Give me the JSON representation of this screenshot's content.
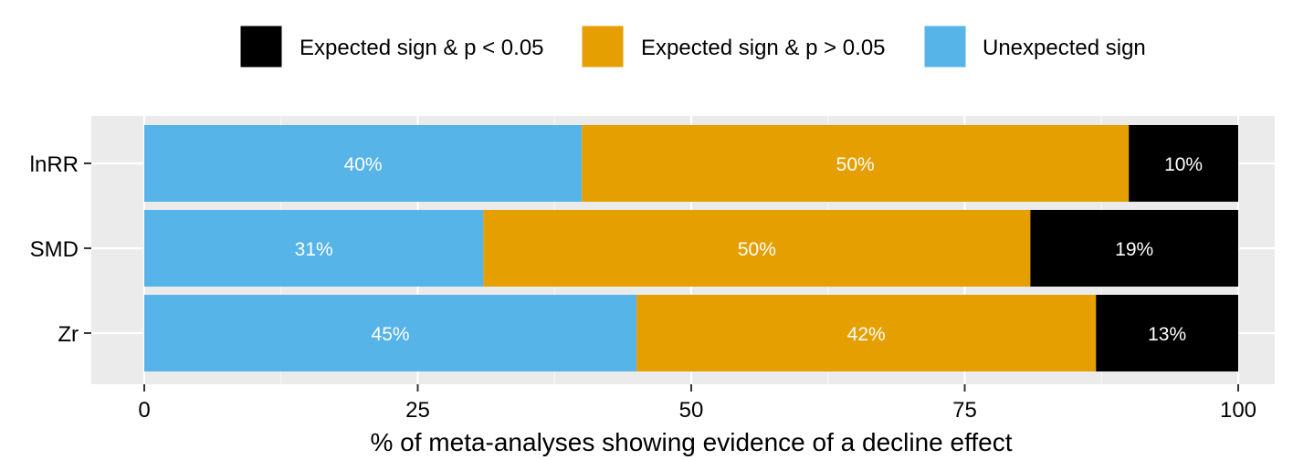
{
  "chart_data": {
    "type": "bar",
    "orientation": "horizontal",
    "stacked": true,
    "categories": [
      "lnRR",
      "SMD",
      "Zr"
    ],
    "series": [
      {
        "name": "Unexpected sign",
        "color": "#56B4E9",
        "values": [
          40,
          31,
          45
        ],
        "labels": [
          "40%",
          "31%",
          "45%"
        ]
      },
      {
        "name": "Expected sign & p > 0.05",
        "color": "#E69F00",
        "values": [
          50,
          50,
          42
        ],
        "labels": [
          "50%",
          "50%",
          "42%"
        ]
      },
      {
        "name": "Expected sign & p < 0.05",
        "color": "#000000",
        "values": [
          10,
          19,
          13
        ],
        "labels": [
          "10%",
          "19%",
          "13%"
        ]
      }
    ],
    "legend": [
      {
        "name": "Expected sign & p < 0.05",
        "color": "#000000"
      },
      {
        "name": "Expected sign & p > 0.05",
        "color": "#E69F00"
      },
      {
        "name": "Unexpected sign",
        "color": "#56B4E9"
      }
    ],
    "legend_position": "top",
    "xlabel": "% of meta-analyses showing evidence of a decline effect",
    "ylabel": "",
    "xlim": [
      0,
      100
    ],
    "xticks": [
      0,
      25,
      50,
      75,
      100
    ],
    "xtick_labels": [
      "0",
      "25",
      "50",
      "75",
      "100"
    ],
    "grid": true,
    "panel_background": "#EBEBEB"
  }
}
